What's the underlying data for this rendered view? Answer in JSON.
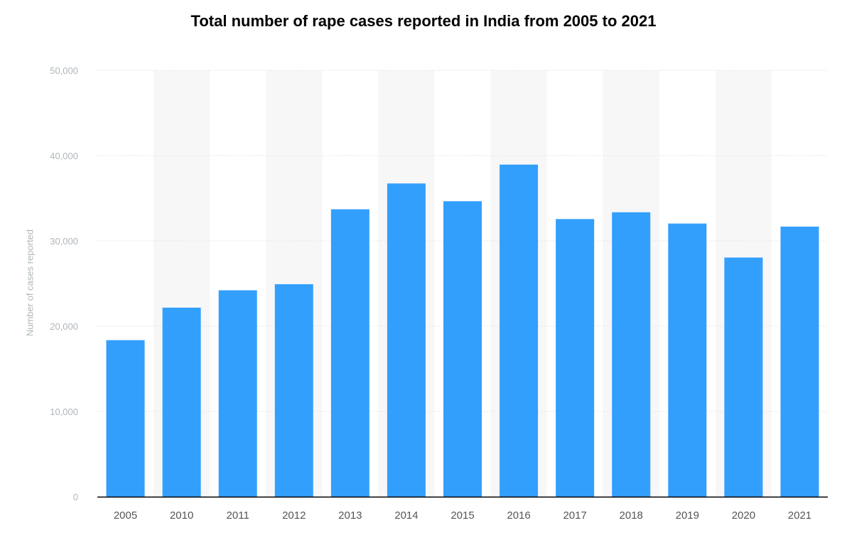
{
  "chart_data": {
    "type": "bar",
    "title": "Total number of rape cases reported in India from 2005 to 2021",
    "xlabel": "",
    "ylabel": "Number of cases reported",
    "categories": [
      "2005",
      "2010",
      "2011",
      "2012",
      "2013",
      "2014",
      "2015",
      "2016",
      "2017",
      "2018",
      "2019",
      "2020",
      "2021"
    ],
    "values": [
      18359,
      22172,
      24206,
      24923,
      33707,
      36735,
      34651,
      38947,
      32559,
      33356,
      32033,
      28046,
      31677
    ],
    "ylim": [
      0,
      50000
    ],
    "yticks": [
      0,
      10000,
      20000,
      30000,
      40000,
      50000
    ],
    "ytick_labels": [
      "0",
      "10,000",
      "20,000",
      "30,000",
      "40,000",
      "50,000"
    ],
    "grid": true,
    "legend": "none",
    "colors": {
      "bar": "#339ffc",
      "grid": "#e6e6e6",
      "axis_line": "#000000",
      "tick_label": "#555555",
      "y_tick_label": "#aeb6bb",
      "band": "#f7f7f7"
    }
  }
}
